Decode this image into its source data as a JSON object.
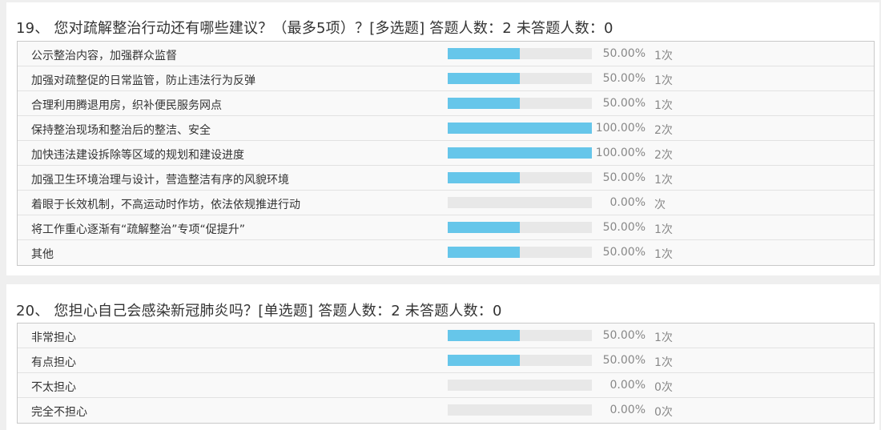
{
  "q19": {
    "title": "19、 您对疏解整治行动还有哪些建议？（最多5项）？[多选题]  答题人数：2  未答题人数：0",
    "options": [
      {
        "label": "公示整治内容，加强群众监督",
        "percent_text": "50.00%",
        "count_text": "1次",
        "fraction": 0.5
      },
      {
        "label": "加强对疏整促的日常监管，防止违法行为反弹",
        "percent_text": "50.00%",
        "count_text": "1次",
        "fraction": 0.5
      },
      {
        "label": "合理利用腾退用房，织补便民服务网点",
        "percent_text": "50.00%",
        "count_text": "1次",
        "fraction": 0.5
      },
      {
        "label": "保持整治现场和整治后的整洁、安全",
        "percent_text": "100.00%",
        "count_text": "2次",
        "fraction": 1.0
      },
      {
        "label": "加快违法建设拆除等区域的规划和建设进度",
        "percent_text": "100.00%",
        "count_text": "2次",
        "fraction": 1.0
      },
      {
        "label": "加强卫生环境治理与设计，营造整洁有序的风貌环境",
        "percent_text": "50.00%",
        "count_text": "1次",
        "fraction": 0.5
      },
      {
        "label": "着眼于长效机制，不高运动时作坊，依法依规推进行动",
        "percent_text": "0.00%",
        "count_text": "次",
        "fraction": 0.0
      },
      {
        "label": "将工作重心逐渐有“疏解整治”专项“促提升”",
        "percent_text": "50.00%",
        "count_text": "1次",
        "fraction": 0.5
      },
      {
        "label": "其他",
        "percent_text": "50.00%",
        "count_text": "1次",
        "fraction": 0.5
      }
    ]
  },
  "q20": {
    "title": "20、 您担心自己会感染新冠肺炎吗？[单选题]  答题人数：2  未答题人数：0",
    "options": [
      {
        "label": "非常担心",
        "percent_text": "50.00%",
        "count_text": "1次",
        "fraction": 0.5
      },
      {
        "label": "有点担心",
        "percent_text": "50.00%",
        "count_text": "1次",
        "fraction": 0.5
      },
      {
        "label": "不太担心",
        "percent_text": "0.00%",
        "count_text": "0次",
        "fraction": 0.0
      },
      {
        "label": "完全不担心",
        "percent_text": "0.00%",
        "count_text": "0次",
        "fraction": 0.0
      }
    ]
  },
  "colors": {
    "bar_fill": "#66c6ea",
    "bar_track": "#e8e8e8"
  }
}
